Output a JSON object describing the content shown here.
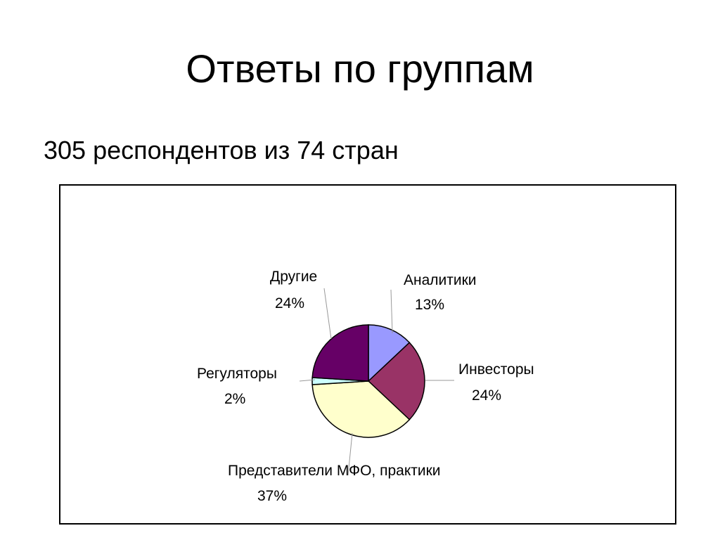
{
  "slide": {
    "title": "Ответы по группам",
    "subtitle": "305 респондентов из 74 стран"
  },
  "chart_data": {
    "type": "pie",
    "title": "",
    "legend": "none",
    "slices": [
      {
        "name": "Аналитики",
        "value": 13,
        "label": "13%",
        "color": "#9999FF"
      },
      {
        "name": "Инвесторы",
        "value": 24,
        "label": "24%",
        "color": "#993366"
      },
      {
        "name": "Представители МФО, практики",
        "value": 37,
        "label": "37%",
        "color": "#FFFFCC"
      },
      {
        "name": "Регуляторы",
        "value": 2,
        "label": "2%",
        "color": "#CCFFFF"
      },
      {
        "name": "Другие",
        "value": 24,
        "label": "24%",
        "color": "#660066"
      }
    ]
  }
}
